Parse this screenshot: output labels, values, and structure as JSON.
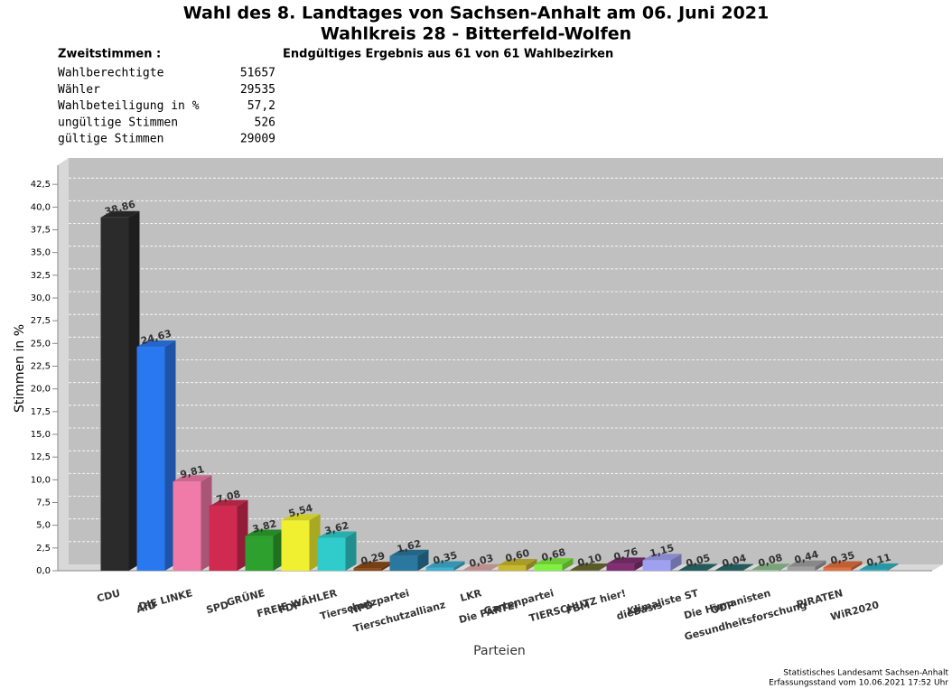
{
  "chart_data": {
    "type": "bar3d",
    "title": "Wahl des 8. Landtages von Sachsen-Anhalt am 06. Juni 2021",
    "subtitle": "Wahlkreis 28 - Bitterfeld-Wolfen",
    "result_note": "Endgültiges Ergebnis aus 61 von 61 Wahlbezirken",
    "info": {
      "header": "Zweitstimmen :",
      "rows": [
        {
          "label": "Wahlberechtigte",
          "value": "51657"
        },
        {
          "label": "Wähler",
          "value": "29535"
        },
        {
          "label": "Wahlbeteiligung in %",
          "value": "57,2"
        },
        {
          "label": "ungültige Stimmen",
          "value": "526"
        },
        {
          "label": "gültige Stimmen",
          "value": "29009"
        }
      ]
    },
    "y_label": "Stimmen in %",
    "x_label": "Parteien",
    "footer": [
      "Statistisches Landesamt Sachsen-Anhalt",
      "Erfassungsstand vom 10.06.2021 17:52 Uhr"
    ],
    "categories": [
      "CDU",
      "AfD",
      "DIE LINKE",
      "SPD",
      "GRÜNE",
      "FDP",
      "FREIE WÄHLER",
      "NPD",
      "Tierschutzpartei",
      "Tierschutzallianz",
      "LKR",
      "Die PARTEI",
      "Gartenpartei",
      "FBM",
      "TIERSCHUTZ hier!",
      "dieBasis",
      "Klimaliste ST",
      "ÖDP",
      "Die Humanisten",
      "Gesundheitsforschung",
      "PIRATEN",
      "WiR2020"
    ],
    "values": [
      38.86,
      24.63,
      9.81,
      7.08,
      3.82,
      5.54,
      3.62,
      0.29,
      1.62,
      0.35,
      0.03,
      0.6,
      0.68,
      0.1,
      0.76,
      1.15,
      0.05,
      0.04,
      0.08,
      0.44,
      0.35,
      0.11
    ],
    "value_labels": [
      "38,86",
      "24,63",
      "9,81",
      "7,08",
      "3,82",
      "5,54",
      "3,62",
      "0,29",
      "1,62",
      "0,35",
      "0,03",
      "0,60",
      "0,68",
      "0,10",
      "0,76",
      "1,15",
      "0,05",
      "0,04",
      "0,08",
      "0,44",
      "0,35",
      "0,11"
    ],
    "colors": [
      "#2b2b2b",
      "#2a78f0",
      "#f07aa8",
      "#d02a50",
      "#2ea02e",
      "#f0f030",
      "#30cccc",
      "#8b4a1a",
      "#2a78a0",
      "#40b0d0",
      "#e0a8a8",
      "#c8b830",
      "#80f040",
      "#6a6a30",
      "#803070",
      "#a0a0f0",
      "#2a6a6a",
      "#2a6a6a",
      "#90c090",
      "#a0a0a0",
      "#e07040",
      "#30b0c0"
    ],
    "ylim": [
      0,
      45
    ],
    "yticks": [
      {
        "value": 0,
        "label": "0,0"
      },
      {
        "value": 2.5,
        "label": "2,5"
      },
      {
        "value": 5,
        "label": "5,0"
      },
      {
        "value": 7.5,
        "label": "7,5"
      },
      {
        "value": 10,
        "label": "10,0"
      },
      {
        "value": 12.5,
        "label": "12,5"
      },
      {
        "value": 15,
        "label": "15,0"
      },
      {
        "value": 17.5,
        "label": "17,5"
      },
      {
        "value": 20,
        "label": "20,0"
      },
      {
        "value": 22.5,
        "label": "22,5"
      },
      {
        "value": 25,
        "label": "25,0"
      },
      {
        "value": 27.5,
        "label": "27,5"
      },
      {
        "value": 30,
        "label": "30,0"
      },
      {
        "value": 32.5,
        "label": "32,5"
      },
      {
        "value": 35,
        "label": "35,0"
      },
      {
        "value": 37.5,
        "label": "37,5"
      },
      {
        "value": 40,
        "label": "40,0"
      },
      {
        "value": 42.5,
        "label": "42,5"
      }
    ],
    "grid": true
  }
}
